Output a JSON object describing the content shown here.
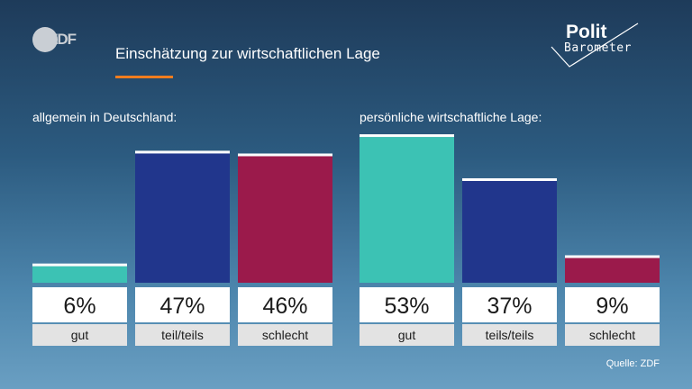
{
  "header": {
    "logo_text": "ZDF",
    "title": "Einschätzung zur wirtschaftlichen Lage",
    "brand_top": "Polit",
    "brand_bottom": "Barometer"
  },
  "colors": {
    "gut": "#3cc2b4",
    "teils": "#21368c",
    "schlecht": "#9b1a4b",
    "accent": "#f07d1e"
  },
  "chart_data": [
    {
      "type": "bar",
      "title": "allgemein in Deutschland:",
      "categories": [
        "gut",
        "teil/teils",
        "schlecht"
      ],
      "values": [
        6,
        47,
        46
      ],
      "value_labels": [
        "6%",
        "47%",
        "46%"
      ],
      "ylim": [
        0,
        55
      ]
    },
    {
      "type": "bar",
      "title": "persönliche wirtschaftliche Lage:",
      "categories": [
        "gut",
        "teils/teils",
        "schlecht"
      ],
      "values": [
        53,
        37,
        9
      ],
      "value_labels": [
        "53%",
        "37%",
        "9%"
      ],
      "ylim": [
        0,
        55
      ]
    }
  ],
  "footer": {
    "source": "Quelle: ZDF"
  }
}
